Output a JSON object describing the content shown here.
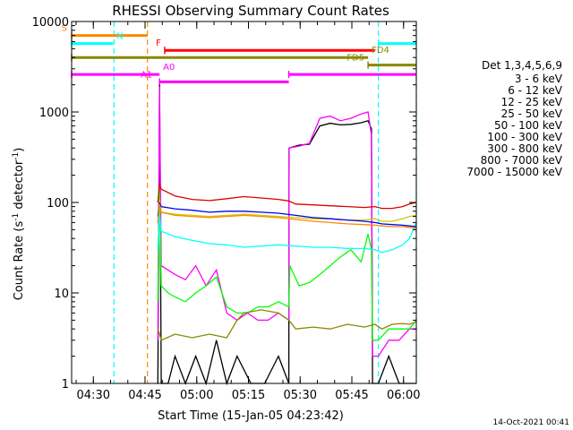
{
  "chart_data": {
    "type": "line",
    "title": "RHESSI Observing Summary Count Rates",
    "xlabel": "Start Time (15-Jan-05 04:23:42)",
    "ylabel_main": "Count Rate (s",
    "ylabel_sup": "-1",
    "ylabel_tail": " detector",
    "ylabel_sup2": "-1",
    "ylabel_end": ")",
    "footer": "14-Oct-2021 00:41",
    "x_scale": "linear (minutes after 04:23:42)",
    "xlim": [
      0,
      100
    ],
    "y_scale": "log",
    "ylim": [
      1,
      10000
    ],
    "x_ticks": [
      {
        "label": "04:30",
        "value": 6.3
      },
      {
        "label": "04:45",
        "value": 21.3
      },
      {
        "label": "05:00",
        "value": 36.3
      },
      {
        "label": "05:15",
        "value": 51.3
      },
      {
        "label": "05:30",
        "value": 66.3
      },
      {
        "label": "05:45",
        "value": 81.3
      },
      {
        "label": "06:00",
        "value": 96.3
      }
    ],
    "y_ticks": [
      {
        "label": "1",
        "value": 1
      },
      {
        "label": "10",
        "value": 10
      },
      {
        "label": "100",
        "value": 100
      },
      {
        "label": "1000",
        "value": 1000
      },
      {
        "label": "10000",
        "value": 10000
      }
    ],
    "legend": {
      "placement": "right",
      "header": "Det 1,3,4,5,6,9",
      "entries": [
        {
          "label": "3 - 6 keV",
          "color": "#000000"
        },
        {
          "label": "6 - 12 keV",
          "color": "#ff00ff"
        },
        {
          "label": "12 - 25 keV",
          "color": "#00ff00"
        },
        {
          "label": "25 - 50 keV",
          "color": "#00ffff"
        },
        {
          "label": "50 - 100 keV",
          "color": "#cccc00"
        },
        {
          "label": "100 - 300 keV",
          "color": "#dd0000"
        },
        {
          "label": "300 - 800 keV",
          "color": "#0000ee"
        },
        {
          "label": "800 - 7000 keV",
          "color": "#ff8800"
        },
        {
          "label": "7000 - 15000 keV",
          "color": "#888800"
        }
      ]
    },
    "flags": [
      {
        "label": "S",
        "color": "#ff8800",
        "segments": [
          [
            0,
            22
          ]
        ],
        "level": 7000
      },
      {
        "label": "N",
        "color": "#00ffff",
        "segments": [
          [
            0,
            12
          ],
          [
            89,
            100
          ]
        ],
        "level": 5700
      },
      {
        "label": "F",
        "color": "#ff0000",
        "segments": [
          [
            27,
            88
          ]
        ],
        "level": 4800
      },
      {
        "label": "FD4",
        "color": "#888800",
        "segments": [
          [
            0,
            86
          ]
        ],
        "level": 4000
      },
      {
        "label": "FD5",
        "color": "#888800",
        "segments": [
          [
            86,
            100
          ]
        ],
        "level": 3300
      },
      {
        "label": "A0",
        "color": "#ff00ff",
        "segments": [
          [
            0,
            25.5
          ],
          [
            63,
            100
          ]
        ],
        "level": 2600
      },
      {
        "label": "A1",
        "color": "#ff00ff",
        "segments": [
          [
            25.5,
            63
          ]
        ],
        "level": 2150
      }
    ],
    "vlines": [
      {
        "x": 12.3,
        "color": "#00ffff"
      },
      {
        "x": 22,
        "color": "#ff8800"
      },
      {
        "x": 89,
        "color": "#00ffff"
      },
      {
        "x": 100,
        "color": "#00ffff"
      }
    ],
    "series": [
      {
        "name": "3 - 6 keV",
        "color": "#000000",
        "x": [
          25,
          25.5,
          26,
          28,
          30,
          33,
          36,
          39,
          42,
          45,
          48,
          52,
          56,
          60,
          63,
          63.1,
          66,
          69,
          72,
          75,
          78,
          81,
          84,
          86,
          87,
          87.3,
          89,
          92,
          95,
          98,
          100
        ],
        "y": [
          1,
          2000,
          1,
          1,
          2,
          1,
          2,
          1,
          3,
          1,
          2,
          1,
          1,
          2,
          1,
          400,
          430,
          440,
          700,
          750,
          720,
          730,
          760,
          800,
          650,
          1,
          1,
          2,
          1,
          1,
          1
        ]
      },
      {
        "name": "6 - 12 keV",
        "color": "#ff00ff",
        "x": [
          25,
          25.5,
          26,
          30,
          33,
          36,
          39,
          42,
          45,
          48,
          51,
          54,
          57,
          60,
          63,
          63.1,
          66,
          69,
          72,
          75,
          78,
          81,
          84,
          86,
          87,
          87.3,
          89,
          92,
          95,
          98,
          100
        ],
        "y": [
          3,
          1900,
          20,
          16,
          14,
          20,
          12,
          18,
          6,
          5,
          6,
          5,
          5,
          6,
          5,
          400,
          420,
          450,
          850,
          900,
          800,
          850,
          950,
          1000,
          550,
          2,
          2,
          3,
          3,
          4,
          4
        ]
      },
      {
        "name": "12 - 25 keV",
        "color": "#00ff00",
        "x": [
          25,
          25.5,
          26,
          28,
          30,
          33,
          36,
          39,
          42,
          45,
          48,
          51,
          54,
          57,
          60,
          63,
          63.3,
          66,
          69,
          72,
          75,
          78,
          81,
          84,
          86,
          87,
          87.3,
          89,
          92,
          95,
          98,
          100
        ],
        "y": [
          8,
          150,
          12,
          10,
          9,
          8,
          10,
          12,
          15,
          7,
          6,
          6,
          7,
          7,
          8,
          7,
          20,
          12,
          13,
          16,
          20,
          25,
          30,
          22,
          45,
          30,
          3,
          3,
          4,
          4,
          4,
          5
        ]
      },
      {
        "name": "25 - 50 keV",
        "color": "#00ffff",
        "x": [
          25,
          25.5,
          26,
          30,
          35,
          40,
          45,
          50,
          55,
          60,
          65,
          70,
          75,
          80,
          85,
          88,
          90,
          93,
          96,
          98,
          100
        ],
        "y": [
          30,
          75,
          48,
          42,
          38,
          35,
          34,
          32,
          33,
          34,
          33,
          32,
          32,
          31,
          31,
          30,
          28,
          30,
          34,
          40,
          60
        ]
      },
      {
        "name": "50 - 100 keV",
        "color": "#cccc00",
        "x": [
          25,
          25.5,
          26,
          30,
          35,
          40,
          45,
          50,
          55,
          60,
          65,
          70,
          75,
          80,
          85,
          88,
          90,
          93,
          96,
          98,
          100
        ],
        "y": [
          60,
          110,
          78,
          74,
          72,
          70,
          72,
          74,
          72,
          70,
          68,
          66,
          66,
          64,
          64,
          66,
          62,
          62,
          66,
          70,
          72
        ]
      },
      {
        "name": "100 - 300 keV",
        "color": "#dd0000",
        "x": [
          25,
          25.5,
          26,
          30,
          35,
          40,
          45,
          50,
          55,
          60,
          63,
          65,
          70,
          75,
          80,
          85,
          88,
          90,
          93,
          96,
          98,
          100
        ],
        "y": [
          100,
          160,
          140,
          118,
          108,
          105,
          110,
          116,
          112,
          108,
          104,
          96,
          94,
          92,
          90,
          88,
          90,
          86,
          86,
          90,
          96,
          100
        ]
      },
      {
        "name": "300 - 800 keV",
        "color": "#0000ee",
        "x": [
          25,
          25.5,
          26,
          30,
          35,
          40,
          45,
          50,
          55,
          60,
          65,
          70,
          75,
          80,
          85,
          88,
          90,
          93,
          96,
          98,
          100
        ],
        "y": [
          70,
          98,
          90,
          85,
          82,
          78,
          80,
          80,
          78,
          76,
          72,
          68,
          66,
          64,
          62,
          60,
          58,
          57,
          56,
          55,
          54
        ]
      },
      {
        "name": "800 - 7000 keV",
        "color": "#ff8800",
        "x": [
          25,
          25.5,
          26,
          30,
          35,
          40,
          45,
          50,
          55,
          60,
          65,
          70,
          75,
          80,
          85,
          88,
          90,
          93,
          96,
          98,
          100
        ],
        "y": [
          60,
          95,
          78,
          72,
          70,
          68,
          70,
          72,
          70,
          68,
          65,
          62,
          60,
          58,
          57,
          56,
          55,
          54,
          54,
          53,
          52
        ]
      },
      {
        "name": "7000 - 15000 keV",
        "color": "#888800",
        "x": [
          25,
          25.5,
          26,
          30,
          35,
          40,
          45,
          48,
          50,
          55,
          60,
          63,
          65,
          70,
          75,
          80,
          85,
          88,
          90,
          93,
          96,
          98,
          100
        ],
        "y": [
          4,
          3.5,
          3,
          3.5,
          3.2,
          3.5,
          3.2,
          5,
          6,
          6.5,
          6,
          5,
          4,
          4.2,
          4,
          4.5,
          4.2,
          4.5,
          4,
          4.5,
          4.6,
          4.5,
          4.8
        ]
      }
    ]
  }
}
